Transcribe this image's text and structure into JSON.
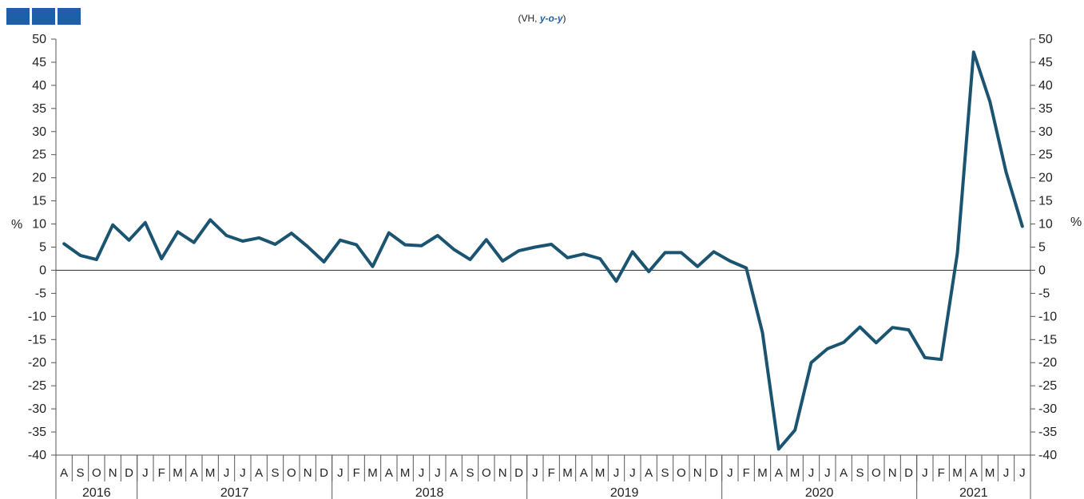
{
  "logo": {
    "blocks": 3,
    "color": "#1f5fa8"
  },
  "subtitle": {
    "prefix": "(VH, ",
    "emph": "y-o-y",
    "suffix": ")"
  },
  "chart_data": {
    "type": "line",
    "ylabel_left": "%",
    "ylabel_right": "%",
    "ylim": [
      -40,
      50
    ],
    "yticks": [
      50,
      45,
      40,
      35,
      30,
      25,
      20,
      15,
      10,
      5,
      0,
      -5,
      -10,
      -15,
      -20,
      -25,
      -30,
      -35,
      -40
    ],
    "line_color": "#1b5470",
    "x": [
      "2016-08",
      "2016-09",
      "2016-10",
      "2016-11",
      "2016-12",
      "2017-01",
      "2017-02",
      "2017-03",
      "2017-04",
      "2017-05",
      "2017-06",
      "2017-07",
      "2017-08",
      "2017-09",
      "2017-10",
      "2017-11",
      "2017-12",
      "2018-01",
      "2018-02",
      "2018-03",
      "2018-04",
      "2018-05",
      "2018-06",
      "2018-07",
      "2018-08",
      "2018-09",
      "2018-10",
      "2018-11",
      "2018-12",
      "2019-01",
      "2019-02",
      "2019-03",
      "2019-04",
      "2019-05",
      "2019-06",
      "2019-07",
      "2019-08",
      "2019-09",
      "2019-10",
      "2019-11",
      "2019-12",
      "2020-01",
      "2020-02",
      "2020-03",
      "2020-04",
      "2020-05",
      "2020-06",
      "2020-07",
      "2020-08",
      "2020-09",
      "2020-10",
      "2020-11",
      "2020-12",
      "2021-01",
      "2021-02",
      "2021-03",
      "2021-04",
      "2021-05",
      "2021-06",
      "2021-07"
    ],
    "month_labels": [
      "A",
      "S",
      "O",
      "N",
      "D",
      "J",
      "F",
      "M",
      "A",
      "M",
      "J",
      "J",
      "A",
      "S",
      "O",
      "N",
      "D",
      "J",
      "F",
      "M",
      "A",
      "M",
      "J",
      "J",
      "A",
      "S",
      "O",
      "N",
      "D",
      "J",
      "F",
      "M",
      "A",
      "M",
      "J",
      "J",
      "A",
      "S",
      "O",
      "N",
      "D",
      "J",
      "F",
      "M",
      "A",
      "M",
      "J",
      "J",
      "A",
      "S",
      "O",
      "N",
      "D",
      "J",
      "F",
      "M",
      "A",
      "M",
      "J",
      "J"
    ],
    "years": [
      {
        "label": "2016",
        "start": 0,
        "count": 5
      },
      {
        "label": "2017",
        "start": 5,
        "count": 12
      },
      {
        "label": "2018",
        "start": 17,
        "count": 12
      },
      {
        "label": "2019",
        "start": 29,
        "count": 12
      },
      {
        "label": "2020",
        "start": 41,
        "count": 12
      },
      {
        "label": "2021",
        "start": 53,
        "count": 7
      }
    ],
    "values": [
      5.7,
      3.2,
      2.3,
      9.8,
      6.5,
      10.3,
      2.5,
      8.3,
      6.0,
      10.9,
      7.5,
      6.3,
      7.0,
      5.6,
      8.0,
      5.1,
      1.8,
      6.5,
      5.5,
      0.8,
      8.1,
      5.5,
      5.3,
      7.5,
      4.5,
      2.3,
      6.6,
      2.0,
      4.2,
      5.0,
      5.6,
      2.7,
      3.5,
      2.5,
      -2.4,
      4.0,
      -0.3,
      3.8,
      3.8,
      0.8,
      4.0,
      2.0,
      0.5,
      -13.5,
      -38.7,
      -34.6,
      -20.0,
      -17.0,
      -15.6,
      -12.3,
      -15.7,
      -12.4,
      -12.9,
      -18.9,
      -19.3,
      3.7,
      47.2,
      36.5,
      21.2,
      9.5
    ]
  }
}
